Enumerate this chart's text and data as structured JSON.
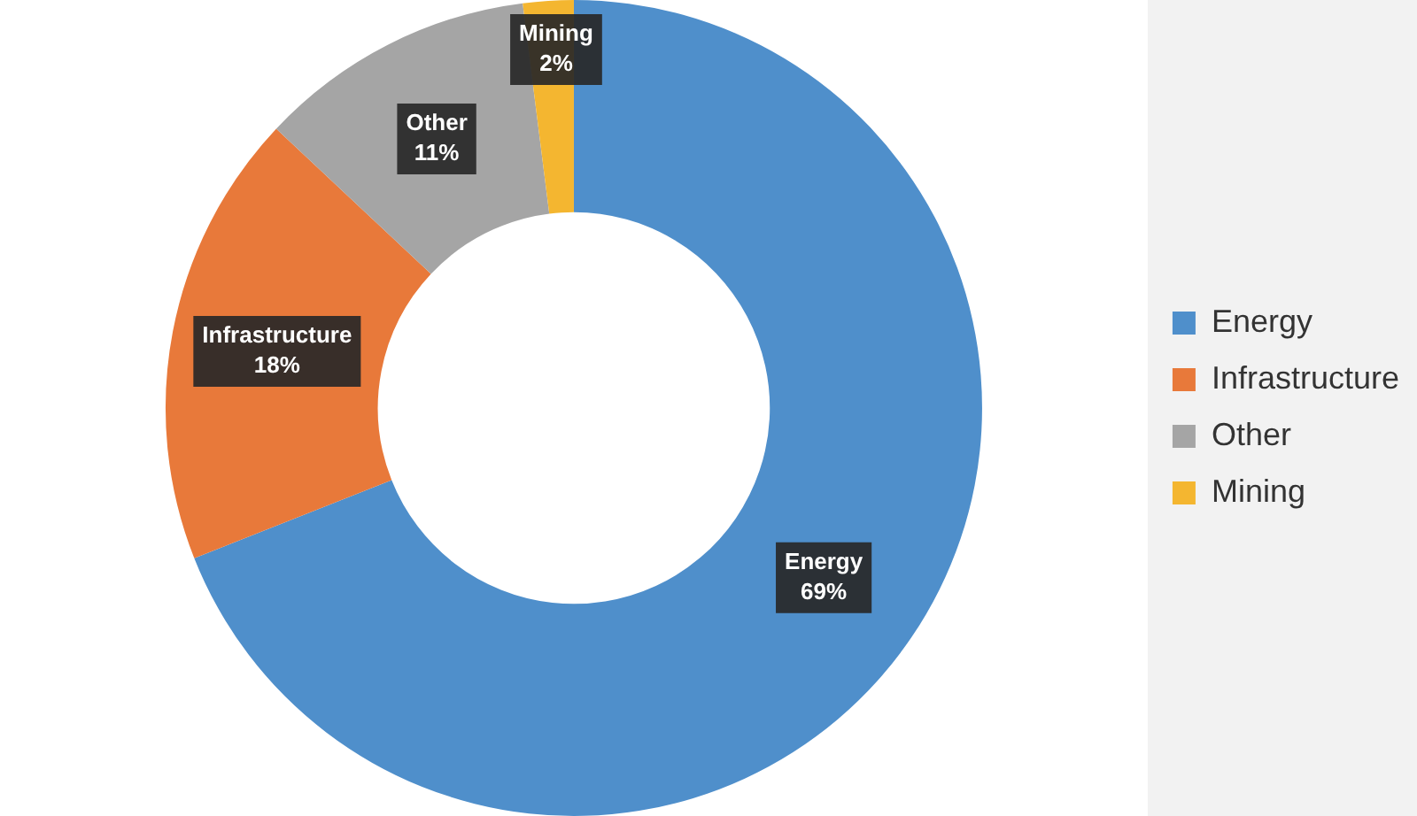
{
  "chart_data": {
    "type": "donut",
    "categories": [
      "Energy",
      "Infrastructure",
      "Other",
      "Mining"
    ],
    "values": [
      69,
      18,
      11,
      2
    ],
    "colors": [
      "#4f8fcb",
      "#e8793a",
      "#a5a5a5",
      "#f4b630"
    ],
    "value_labels": [
      "69%",
      "18%",
      "11%",
      "2%"
    ],
    "legend": "right"
  }
}
